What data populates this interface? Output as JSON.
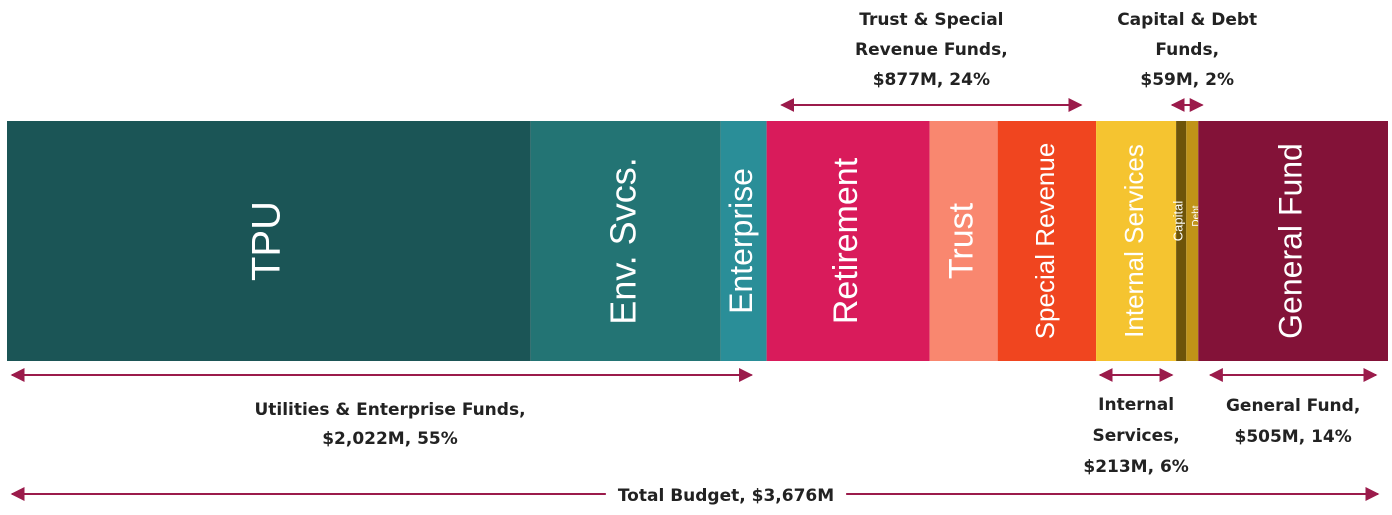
{
  "chart_data": {
    "type": "stacked_bar",
    "orientation": "horizontal",
    "series": [
      {
        "name": "TPU",
        "color": "#1b5556",
        "values": [
          1394
        ]
      },
      {
        "name": "Env. Svcs.",
        "color": "#237474",
        "values": [
          506
        ]
      },
      {
        "name": "Enterprise",
        "color": "#2a8e98",
        "values": [
          122
        ]
      },
      {
        "name": "Retirement",
        "color": "#d91b5b",
        "values": [
          434
        ]
      },
      {
        "name": "Trust",
        "color": "#f9876f",
        "values": [
          181
        ]
      },
      {
        "name": "Special Revenue",
        "color": "#f0451f",
        "values": [
          262
        ]
      },
      {
        "name": "Internal Services",
        "color": "#f5c430",
        "values": [
          213
        ]
      },
      {
        "name": "Capital",
        "color": "#6e5409",
        "values": [
          27
        ]
      },
      {
        "name": "Debt",
        "color": "#c09318",
        "values": [
          32
        ]
      },
      {
        "name": "General Fund",
        "color": "#831238",
        "values": [
          505
        ]
      }
    ],
    "annotations": [
      {
        "lines": [
          "Trust & Special",
          "Revenue Funds,",
          "$877M, 24%"
        ]
      },
      {
        "lines": [
          "Capital & Debt",
          "Funds,",
          "$59M, 2%"
        ]
      },
      {
        "lines": [
          "Utilities & Enterprise Funds,",
          "$2,022M, 55%"
        ]
      },
      {
        "lines": [
          "Internal",
          "Services,",
          "$213M, 6%"
        ]
      },
      {
        "lines": [
          "General Fund,",
          "$505M, 14%"
        ]
      },
      {
        "lines": [
          "Total Budget, $3,676M"
        ]
      }
    ]
  }
}
